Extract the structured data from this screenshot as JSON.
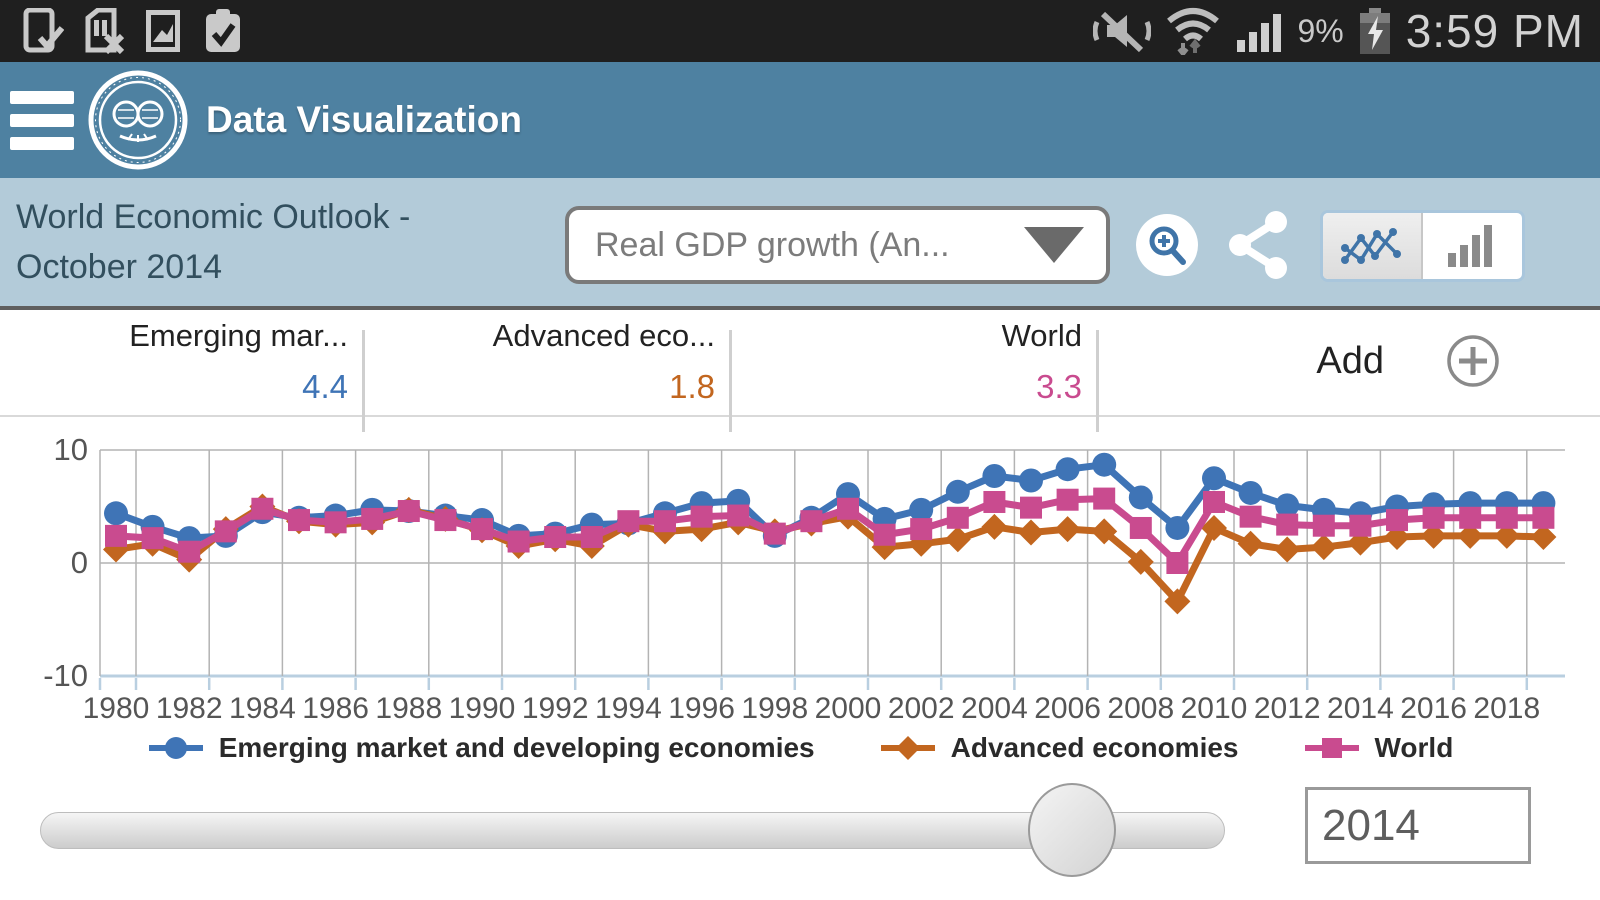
{
  "status_bar": {
    "time": "3:59 PM",
    "battery_percent": "9%",
    "left_icons": [
      "download-complete-icon",
      "sim-removed-icon",
      "screenshot-captured-icon",
      "clipboard-check-icon"
    ],
    "right_icons": [
      "vibrate-mute-icon",
      "wifi-icon",
      "signal-strength-icon",
      "battery-charging-icon"
    ]
  },
  "app_header": {
    "title": "Data Visualization",
    "logo": "imf-logo",
    "background_color": "#4e81a1"
  },
  "toolbar": {
    "title_line1": "World Economic Outlook -",
    "title_line2": "October 2014",
    "indicator_dropdown_value": "Real GDP growth (An...",
    "icons": [
      "zoom-in-icon",
      "share-icon",
      "line-chart-toggle-icon",
      "bar-chart-toggle-icon"
    ],
    "chart_type_selected": "line",
    "background_color": "#b3cbd9"
  },
  "series_summary": [
    {
      "label": "Emerging mar...",
      "value": "4.4",
      "color": "#3f74b6"
    },
    {
      "label": "Advanced eco...",
      "value": "1.8",
      "color": "#c2661f"
    },
    {
      "label": "World",
      "value": "3.3",
      "color": "#c94b8f"
    }
  ],
  "add_button": {
    "label": "Add",
    "icon": "plus-circle-icon"
  },
  "chart_data": {
    "type": "line",
    "x_start": 1980,
    "x_end": 2019,
    "x": [
      1980,
      1981,
      1982,
      1983,
      1984,
      1985,
      1986,
      1987,
      1988,
      1989,
      1990,
      1991,
      1992,
      1993,
      1994,
      1995,
      1996,
      1997,
      1998,
      1999,
      2000,
      2001,
      2002,
      2003,
      2004,
      2005,
      2006,
      2007,
      2008,
      2009,
      2010,
      2011,
      2012,
      2013,
      2014,
      2015,
      2016,
      2017,
      2018,
      2019
    ],
    "series": [
      {
        "name": "Emerging market and developing economies",
        "marker": "circle",
        "color": "#3f74b6",
        "values": [
          4.4,
          3.2,
          2.2,
          2.4,
          4.5,
          4.0,
          4.2,
          4.7,
          4.6,
          4.2,
          3.8,
          2.4,
          2.6,
          3.4,
          3.5,
          4.4,
          5.3,
          5.5,
          2.4,
          4.0,
          6.1,
          3.9,
          4.7,
          6.3,
          7.7,
          7.3,
          8.3,
          8.7,
          5.8,
          3.1,
          7.5,
          6.2,
          5.1,
          4.7,
          4.4,
          5.0,
          5.2,
          5.3,
          5.3,
          5.3
        ]
      },
      {
        "name": "Advanced economies",
        "marker": "diamond",
        "color": "#c2661f",
        "values": [
          1.2,
          1.7,
          0.3,
          3.0,
          5.0,
          3.7,
          3.4,
          3.6,
          4.7,
          3.9,
          2.9,
          1.5,
          2.1,
          1.5,
          3.4,
          2.8,
          3.0,
          3.6,
          2.8,
          3.5,
          4.1,
          1.4,
          1.7,
          2.1,
          3.2,
          2.7,
          3.0,
          2.8,
          0.1,
          -3.4,
          3.1,
          1.7,
          1.2,
          1.4,
          1.8,
          2.3,
          2.4,
          2.4,
          2.4,
          2.3
        ]
      },
      {
        "name": "World",
        "marker": "square",
        "color": "#c94b8f",
        "values": [
          2.4,
          2.2,
          1.0,
          2.8,
          4.8,
          3.8,
          3.6,
          3.9,
          4.6,
          3.8,
          3.0,
          1.9,
          2.3,
          2.3,
          3.7,
          3.7,
          4.1,
          4.2,
          2.6,
          3.7,
          4.8,
          2.5,
          3.0,
          4.0,
          5.4,
          4.9,
          5.6,
          5.7,
          3.1,
          0.0,
          5.4,
          4.1,
          3.4,
          3.3,
          3.3,
          3.8,
          4.0,
          4.0,
          4.0,
          4.0
        ]
      }
    ],
    "ylim": [
      -10,
      10
    ],
    "yticks": [
      10,
      0,
      -10
    ],
    "xticks": [
      1980,
      1982,
      1984,
      1986,
      1988,
      1990,
      1992,
      1994,
      1996,
      1998,
      2000,
      2002,
      2004,
      2006,
      2008,
      2010,
      2012,
      2014,
      2016,
      2018
    ],
    "grid": true,
    "legend_position": "bottom",
    "title": ""
  },
  "slider": {
    "value": "2014"
  }
}
